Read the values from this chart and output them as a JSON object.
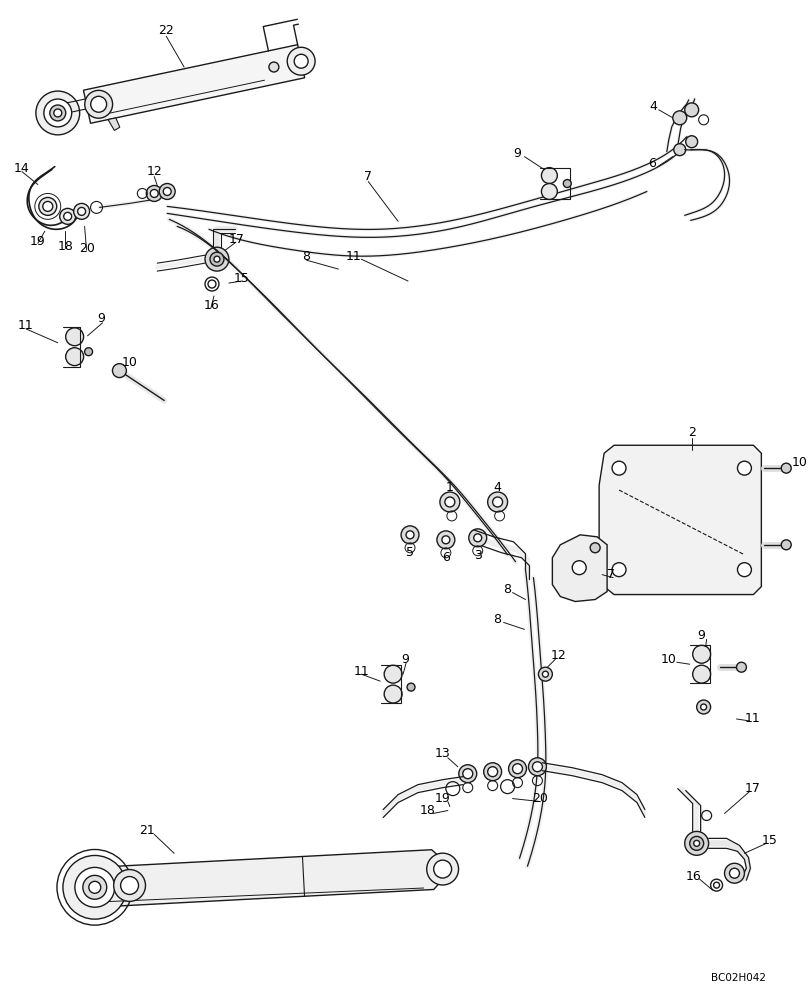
{
  "bg_color": "#ffffff",
  "lc": "#1a1a1a",
  "lw": 1.0,
  "figsize": [
    8.08,
    10.0
  ],
  "dpi": 100,
  "watermark": "BC02H042"
}
